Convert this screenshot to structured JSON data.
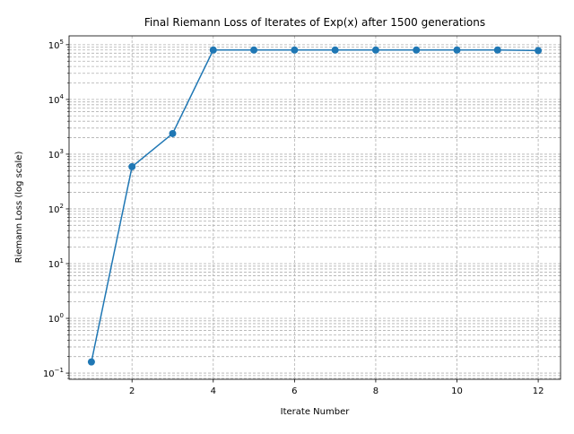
{
  "chart_data": {
    "type": "line",
    "title": "Final Riemann Loss of Iterates of Exp(x) after 1500 generations",
    "x_label": "Iterate Number",
    "y_label": "Riemann Loss (log scale)",
    "x": [
      1,
      2,
      3,
      4,
      5,
      6,
      7,
      8,
      9,
      10,
      11,
      12
    ],
    "series": [
      {
        "name": "Riemann Loss",
        "color": "#1f77b4",
        "values": [
          0.16,
          590,
          2380,
          80000,
          80000,
          80000,
          80000,
          80000,
          80000,
          80000,
          80000,
          78000
        ]
      }
    ],
    "xlim": [
      0.45,
      12.55
    ],
    "xticks": [
      2,
      4,
      6,
      8,
      10,
      12
    ],
    "ylim": [
      0.077,
      145000
    ],
    "y_log": true,
    "yticks": [
      {
        "value": 0.1,
        "label": "10",
        "exponent": "−1"
      },
      {
        "value": 1,
        "label": "10",
        "exponent": "0"
      },
      {
        "value": 10,
        "label": "10",
        "exponent": "1"
      },
      {
        "value": 100,
        "label": "10",
        "exponent": "2"
      },
      {
        "value": 1000,
        "label": "10",
        "exponent": "3"
      },
      {
        "value": 10000,
        "label": "10",
        "exponent": "4"
      },
      {
        "value": 100000,
        "label": "10",
        "exponent": "5"
      }
    ],
    "yminorticks": [
      0.08,
      0.09,
      0.2,
      0.3,
      0.4,
      0.5,
      0.6,
      0.7,
      0.8,
      0.9,
      2,
      3,
      4,
      5,
      6,
      7,
      8,
      9,
      20,
      30,
      40,
      50,
      60,
      70,
      80,
      90,
      200,
      300,
      400,
      500,
      600,
      700,
      800,
      900,
      2000,
      3000,
      4000,
      5000,
      6000,
      7000,
      8000,
      9000,
      20000,
      30000,
      40000,
      50000,
      60000,
      70000,
      80000,
      90000
    ],
    "grid": true
  }
}
